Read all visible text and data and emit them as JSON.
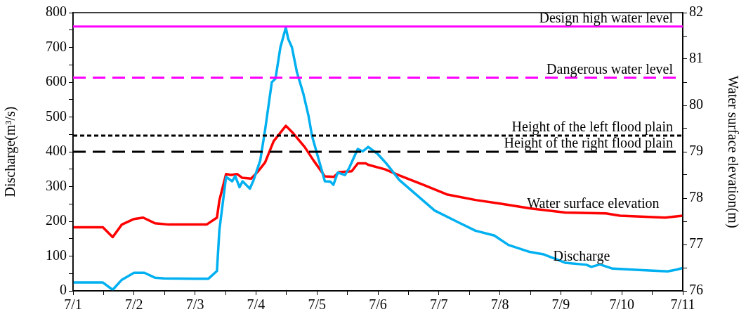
{
  "chart_data": {
    "type": "line",
    "ylabel": "Discharge(m³/s)",
    "y2label": "Water surface elevation(m)",
    "xlim": [
      "--07-01",
      "--07-11"
    ],
    "xticks": [
      {
        "value": "--07-01",
        "label": "7/1"
      },
      {
        "value": "--07-01T12:00",
        "label": null
      },
      {
        "value": "--07-02",
        "label": "7/2"
      },
      {
        "value": "--07-02T12:00",
        "label": null
      },
      {
        "value": "--07-03",
        "label": "7/3"
      },
      {
        "value": "--07-03T12:00",
        "label": null
      },
      {
        "value": "--07-04",
        "label": "7/4"
      },
      {
        "value": "--07-04T12:00",
        "label": null
      },
      {
        "value": "--07-05",
        "label": "7/5"
      },
      {
        "value": "--07-05T12:00",
        "label": null
      },
      {
        "value": "--07-06",
        "label": "7/6"
      },
      {
        "value": "--07-06T12:00",
        "label": null
      },
      {
        "value": "--07-07",
        "label": "7/7"
      },
      {
        "value": "--07-07T12:00",
        "label": null
      },
      {
        "value": "--07-08",
        "label": "7/8"
      },
      {
        "value": "--07-08T12:00",
        "label": null
      },
      {
        "value": "--07-09",
        "label": "7/9"
      },
      {
        "value": "--07-09T12:00",
        "label": null
      },
      {
        "value": "--07-10",
        "label": "7/10"
      },
      {
        "value": "--07-10T12:00",
        "label": null
      },
      {
        "value": "--07-11",
        "label": "7/11"
      }
    ],
    "ylim": [
      0,
      800
    ],
    "yticks": [
      0,
      {
        "value": 50,
        "label": null
      },
      100,
      {
        "value": 150,
        "label": null
      },
      200,
      {
        "value": 250,
        "label": null
      },
      300,
      {
        "value": 350,
        "label": null
      },
      400,
      {
        "value": 450,
        "label": null
      },
      500,
      {
        "value": 550,
        "label": null
      },
      600,
      {
        "value": 650,
        "label": null
      },
      700,
      {
        "value": 750,
        "label": null
      },
      800
    ],
    "y2lim": [
      76,
      82
    ],
    "y2ticks": [
      76,
      {
        "value": 76.5,
        "label": null
      },
      77,
      {
        "value": 77.5,
        "label": null
      },
      78,
      {
        "value": 78.5,
        "label": null
      },
      79,
      {
        "value": 79.5,
        "label": null
      },
      80,
      {
        "value": 80.5,
        "label": null
      },
      81,
      {
        "value": 81.5,
        "label": null
      },
      82
    ],
    "series": [
      {
        "color": "#00b0f0",
        "x": [
          "--07-01T00:00",
          "--07-01T11:45",
          "--07-01T15:36",
          "--07-01T19:12",
          "--07-02T00:00",
          "--07-02T04:05",
          "--07-02T08:10",
          "--07-02T11:45",
          "--07-03T00:00",
          "--07-03T05:17",
          "--07-03T08:38",
          "--07-03T09:36",
          "--07-03T12:14",
          "--07-03T14:38",
          "--07-03T15:50",
          "--07-03T17:31",
          "--07-03T18:43",
          "--07-03T21:36",
          "--07-03T23:02",
          "--07-04T01:41",
          "--07-04T03:36",
          "--07-04T06:14",
          "--07-04T07:41",
          "--07-04T09:36",
          "--07-04T11:45",
          "--07-04T12:43",
          "--07-04T14:10",
          "--07-04T16:05",
          "--07-04T18:43",
          "--07-04T20:38",
          "--07-04T22:05",
          "--07-05T03:07",
          "--07-05T05:17",
          "--07-05T06:29",
          "--07-05T08:10",
          "--07-05T11:02",
          "--07-05T12:43",
          "--07-05T16:05",
          "--07-05T18:00",
          "--07-05T20:10",
          "--07-06T00:00",
          "--07-06T03:22",
          "--07-06T08:24",
          "--07-06T14:53",
          "--07-06T22:19",
          "--07-07T07:41",
          "--07-07T14:24",
          "--07-07T21:50",
          "--07-08T03:22",
          "--07-08T11:45",
          "--07-08T17:17",
          "--07-09T01:41",
          "--07-09T10:05",
          "--07-09T12:00",
          "--07-09T15:22",
          "--07-09T20:24",
          "--07-10T06:43",
          "--07-10T18:00",
          "--07-10T21:36",
          "--07-11T00:00"
        ],
        "values": [
          24,
          24,
          3,
          32,
          52,
          52,
          38,
          36,
          35,
          35,
          57,
          175,
          328,
          315,
          330,
          298,
          315,
          294,
          318,
          375,
          463,
          600,
          610,
          700,
          757,
          724,
          700,
          630,
          565,
          505,
          445,
          315,
          314,
          305,
          340,
          333,
          354,
          408,
          401,
          414,
          393,
          366,
          319,
          278,
          231,
          197,
          173,
          159,
          132,
          112,
          105,
          81,
          75,
          69,
          76,
          64,
          60,
          56,
          61,
          66
        ]
      },
      {
        "color": "#ff0000",
        "axis": "y2",
        "x": [
          "--07-01T00:00",
          "--07-01T11:45",
          "--07-01T15:36",
          "--07-01T19:12",
          "--07-02T00:00",
          "--07-02T03:36",
          "--07-02T08:10",
          "--07-02T13:41",
          "--07-03T00:00",
          "--07-03T04:34",
          "--07-03T08:38",
          "--07-03T09:36",
          "--07-03T12:14",
          "--07-03T14:10",
          "--07-03T16:34",
          "--07-03T18:29",
          "--07-03T22:05",
          "--07-04T00:43",
          "--07-04T03:36",
          "--07-04T06:58",
          "--07-04T11:45",
          "--07-04T14:38",
          "--07-04T19:12",
          "--07-04T22:34",
          "--07-05T03:07",
          "--07-05T06:43",
          "--07-05T08:38",
          "--07-05T13:41",
          "--07-05T16:05",
          "--07-05T19:12",
          "--07-05T20:10",
          "--07-06T02:53",
          "--07-06T08:24",
          "--07-06T17:46",
          "--07-07T03:07",
          "--07-07T14:24",
          "--07-08T00:29",
          "--07-08T11:45",
          "--07-09T01:41",
          "--07-09T17:46",
          "--07-09T23:17",
          "--07-10T17:02",
          "--07-11T00:00"
        ],
        "values": [
          77.37,
          77.37,
          77.16,
          77.43,
          77.55,
          77.58,
          77.46,
          77.43,
          77.43,
          77.43,
          77.58,
          77.95,
          78.52,
          78.5,
          78.52,
          78.44,
          78.42,
          78.57,
          78.77,
          79.23,
          79.56,
          79.4,
          79.1,
          78.82,
          78.47,
          78.46,
          78.56,
          78.58,
          78.75,
          78.75,
          78.72,
          78.62,
          78.49,
          78.29,
          78.08,
          77.96,
          77.88,
          77.78,
          77.69,
          77.67,
          77.62,
          77.58,
          77.62
        ]
      }
    ],
    "ref_lines": [
      {
        "axis": "y2",
        "value": 81.7,
        "label": "Design high water level",
        "color": "#ff00ff",
        "line_style": "solid"
      },
      {
        "axis": "y2",
        "value": 80.6,
        "label": "Dangerous water level",
        "color": "#ff00ff",
        "line_style": "dashed"
      },
      {
        "axis": "y2",
        "value": 79.35,
        "label": "Height of the left flood plain",
        "color": "#000000",
        "line_style": "dotted"
      },
      {
        "axis": "y2",
        "value": 79.0,
        "label": "Height of the right flood plain",
        "color": "#000000",
        "line_style": "dashed"
      }
    ],
    "annotations": [
      {
        "text": "Water surface elevation",
        "x": "--07-09T12:43",
        "y": 228
      },
      {
        "text": "Discharge",
        "x": "--07-09T08:10",
        "y": 78
      }
    ]
  }
}
